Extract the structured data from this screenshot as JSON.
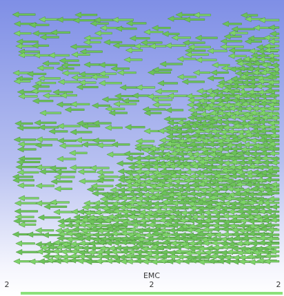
{
  "legend": {
    "title": "EMC",
    "labels": [
      "2",
      "2",
      "2"
    ]
  }
}
